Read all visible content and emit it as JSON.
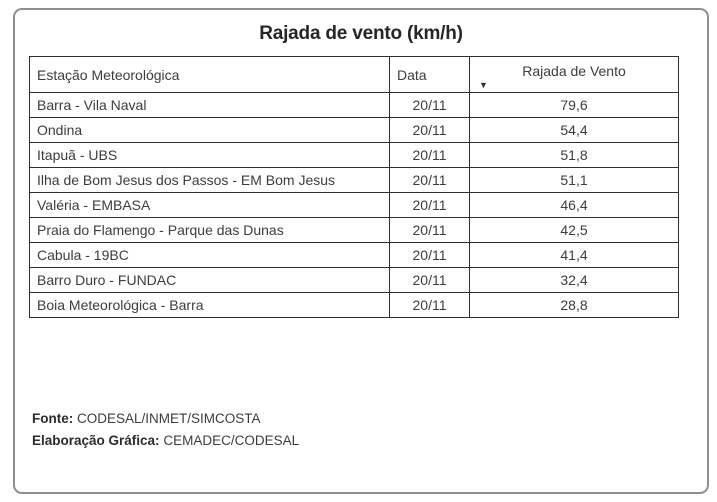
{
  "chart_data": {
    "type": "table",
    "title": "Rajada de vento (km/h)",
    "unit": "km/h",
    "columns": [
      "Estação Meteorológica",
      "Data",
      "Rajada de Vento"
    ],
    "sort": {
      "column": "Rajada de Vento",
      "direction": "desc",
      "icon": "▼"
    },
    "rows": [
      [
        "Barra - Vila Naval",
        "20/11",
        "79,6"
      ],
      [
        "Ondina",
        "20/11",
        "54,4"
      ],
      [
        "Itapuã - UBS",
        "20/11",
        "51,8"
      ],
      [
        "Ilha de Bom Jesus dos Passos - EM Bom Jesus",
        "20/11",
        "51,1"
      ],
      [
        "Valéria - EMBASA",
        "20/11",
        "46,4"
      ],
      [
        "Praia do Flamengo - Parque das Dunas",
        "20/11",
        "42,5"
      ],
      [
        "Cabula - 19BC",
        "20/11",
        "41,4"
      ],
      [
        "Barro Duro - FUNDAC",
        "20/11",
        "32,4"
      ],
      [
        "Boia Meteorológica - Barra",
        "20/11",
        "28,8"
      ]
    ],
    "gust_values_kmh": [
      79.6,
      54.4,
      51.8,
      51.1,
      46.4,
      42.5,
      41.4,
      32.4,
      28.8
    ]
  },
  "footer": {
    "fonte_label": "Fonte:",
    "fonte_value": "CODESAL/INMET/SIMCOSTA",
    "elaboracao_label": "Elaboração Gráfica:",
    "elaboracao_value": "CEMADEC/CODESAL"
  },
  "colors": {
    "outer_border": "#8e8e8e",
    "table_border": "#2f2f2f",
    "text": "#3c3c3c",
    "title_text": "#262626",
    "background": "#ffffff"
  }
}
